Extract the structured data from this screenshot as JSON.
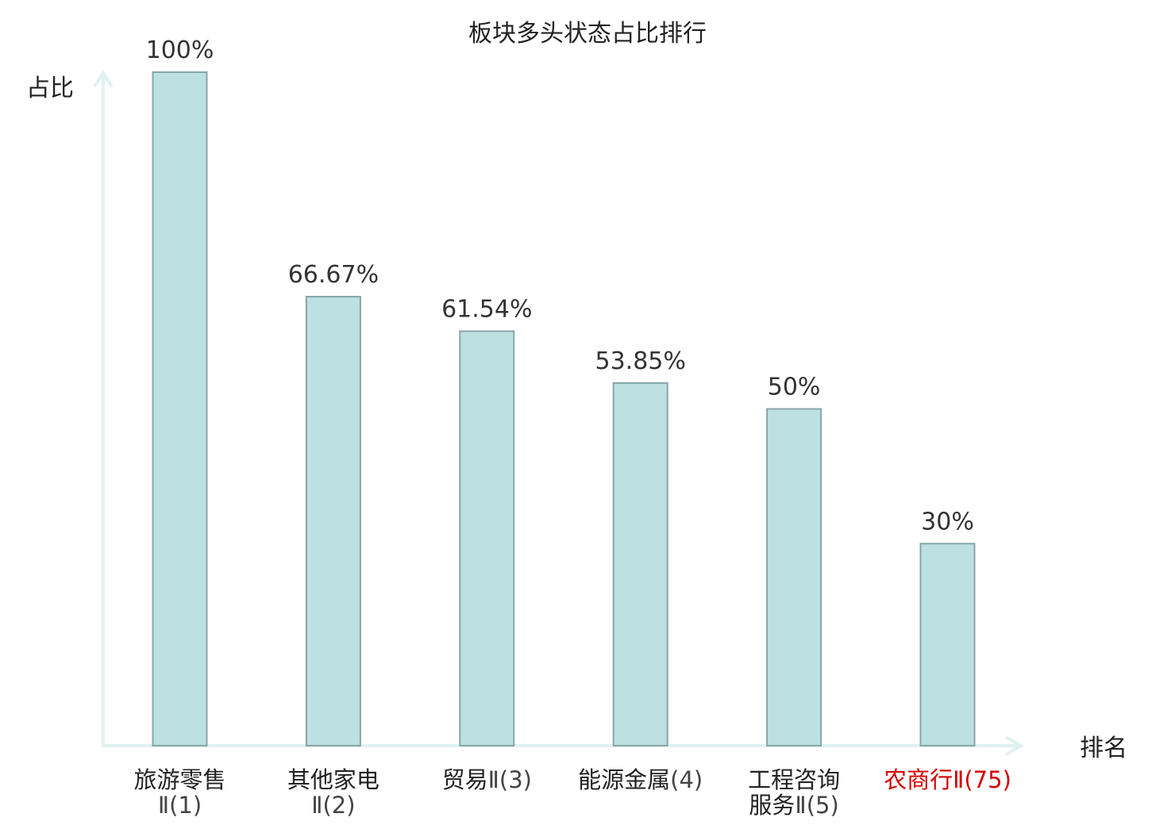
{
  "chart_data": {
    "type": "bar",
    "title": "板块多头状态占比排行",
    "xlabel": "排名",
    "ylabel": "占比",
    "ylim": [
      0,
      100
    ],
    "unit": "%",
    "grid": false,
    "categories": [
      {
        "name": "旅游零售",
        "suffix": "Ⅱ(1)",
        "wrap": true
      },
      {
        "name": "其他家电",
        "suffix": "Ⅱ(2)",
        "wrap": true
      },
      {
        "name": "贸易",
        "suffix": "Ⅱ(3)",
        "wrap": false
      },
      {
        "name": "能源金属",
        "suffix": "(4)",
        "wrap": false
      },
      {
        "name": "工程咨询",
        "name2": "服务",
        "suffix": "Ⅱ(5)",
        "wrap": true
      },
      {
        "name": "农商行",
        "suffix": "Ⅱ(75)",
        "wrap": false,
        "highlight": true
      }
    ],
    "values": [
      100,
      66.67,
      61.54,
      53.85,
      50,
      30
    ],
    "value_labels": [
      "100%",
      "66.67%",
      "61.54%",
      "53.85%",
      "50%",
      "30%"
    ],
    "colors": {
      "bar_fill": "#bde0e3",
      "bar_stroke": "#87a6a9",
      "axis": "#e0f2ef",
      "highlight_text": "#d40000"
    }
  }
}
